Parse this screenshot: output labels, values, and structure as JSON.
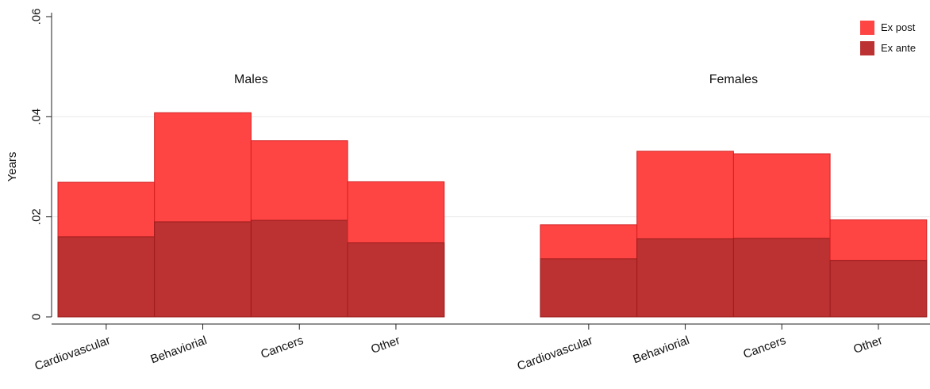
{
  "chart_data": {
    "type": "bar",
    "ylabel": "Years",
    "ylim": [
      0,
      0.06
    ],
    "yticks": [
      {
        "value": 0,
        "label": "0"
      },
      {
        "value": 0.02,
        "label": ".02"
      },
      {
        "value": 0.04,
        "label": ".04"
      },
      {
        "value": 0.06,
        "label": ".06"
      }
    ],
    "grid": true,
    "legend_position": "top-right",
    "categories": [
      "Cardiovascular",
      "Behaviorial",
      "Cancers",
      "Other"
    ],
    "groups": [
      "Males",
      "Females"
    ],
    "series": [
      {
        "name": "Ex post",
        "color": "#ff4444",
        "values": {
          "Males": [
            0.0269,
            0.0408,
            0.0352,
            0.027
          ],
          "Females": [
            0.0184,
            0.0331,
            0.0326,
            0.0194
          ]
        }
      },
      {
        "name": "Ex ante",
        "color": "#bc3232",
        "values": {
          "Males": [
            0.016,
            0.019,
            0.0193,
            0.0148
          ],
          "Females": [
            0.0116,
            0.0156,
            0.0157,
            0.0113
          ]
        }
      }
    ]
  }
}
